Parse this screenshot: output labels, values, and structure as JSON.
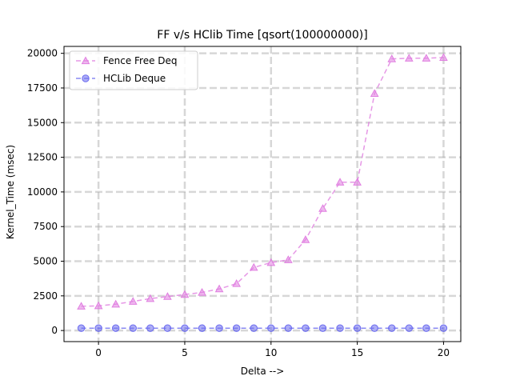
{
  "chart_data": {
    "type": "line",
    "title": "FF v/s HClib Time [qsort(100000000)]",
    "xlabel": "Delta -->",
    "ylabel": "Kernel_Time (msec)",
    "xlim": [
      -2,
      21
    ],
    "ylim": [
      -800,
      20500
    ],
    "xticks": [
      0,
      5,
      10,
      15,
      20
    ],
    "yticks": [
      0,
      2500,
      5000,
      7500,
      10000,
      12500,
      15000,
      17500,
      20000
    ],
    "grid": true,
    "legend_position": "top-left",
    "x": [
      -1,
      0,
      1,
      2,
      3,
      4,
      5,
      6,
      7,
      8,
      9,
      10,
      11,
      12,
      13,
      14,
      15,
      16,
      17,
      18,
      19,
      20
    ],
    "series": [
      {
        "name": "Fence Free Deq",
        "color": "#e07ee0",
        "marker": "triangle",
        "values": [
          1750,
          1780,
          1900,
          2100,
          2300,
          2450,
          2600,
          2750,
          3000,
          3380,
          4550,
          4900,
          5100,
          6550,
          8800,
          10700,
          10700,
          17100,
          19600,
          19650,
          19650,
          19700
        ]
      },
      {
        "name": "HCLib Deque",
        "color": "#6b6bef",
        "marker": "circle",
        "values": [
          170,
          170,
          170,
          170,
          170,
          170,
          170,
          170,
          170,
          170,
          170,
          170,
          170,
          170,
          170,
          170,
          170,
          170,
          170,
          170,
          170,
          170
        ]
      }
    ]
  }
}
